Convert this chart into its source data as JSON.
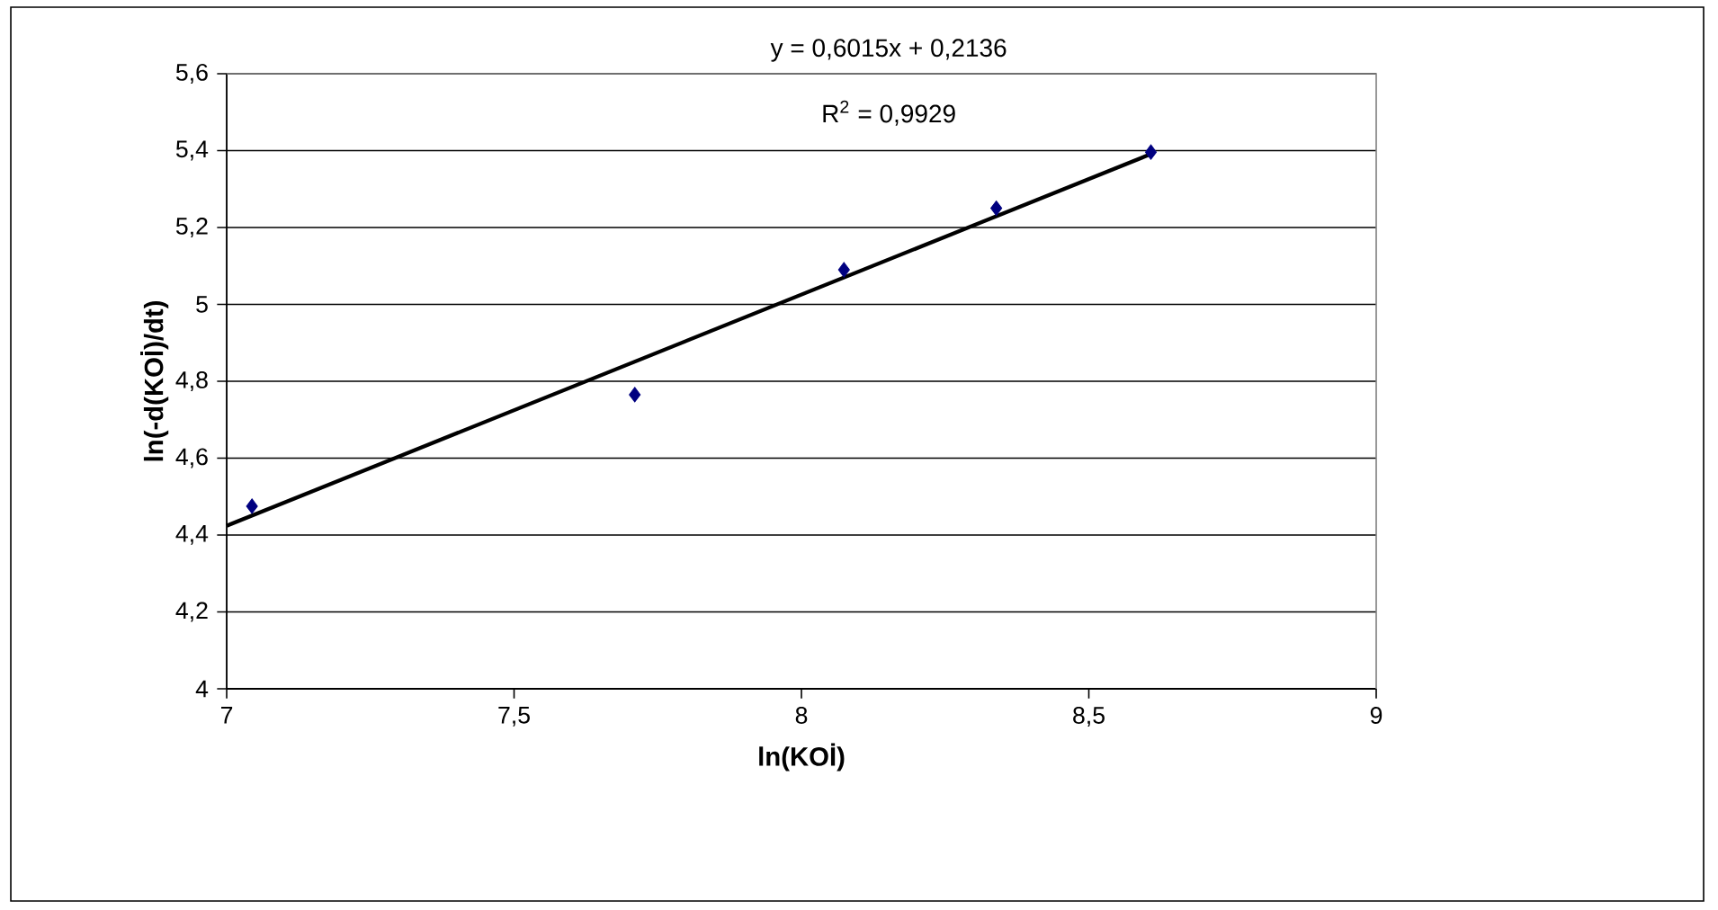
{
  "chart_data": {
    "type": "scatter",
    "xlabel": "ln(KOİ)",
    "ylabel": "ln(-d(KOİ)/dt)",
    "series": [
      {
        "color": "#000080",
        "marker": "diamond",
        "x": [
          7.044,
          7.71,
          8.074,
          8.339,
          8.608
        ],
        "values": [
          4.475,
          4.765,
          5.09,
          5.25,
          5.396
        ]
      },
      {
        "type": "line",
        "color": "#000000",
        "marker": "none",
        "line_style": "solid",
        "x": [
          7,
          8.608
        ],
        "values": [
          4.424,
          5.391
        ]
      }
    ],
    "xlim": [
      7,
      9
    ],
    "ylim": [
      4,
      5.6
    ],
    "xticks": [
      7,
      {
        "value": 7.5,
        "label": "7,5"
      },
      8,
      {
        "value": 8.5,
        "label": "8,5"
      },
      9
    ],
    "yticks": [
      4,
      {
        "value": 4.2,
        "label": "4,2"
      },
      {
        "value": 4.4,
        "label": "4,4"
      },
      {
        "value": 4.6,
        "label": "4,6"
      },
      {
        "value": 4.8,
        "label": "4,8"
      },
      5,
      {
        "value": 5.2,
        "label": "5,2"
      },
      {
        "value": 5.4,
        "label": "5,4"
      },
      {
        "value": 5.6,
        "label": "5,6"
      }
    ],
    "grid": "y",
    "annotations": [
      "y = 0,6015x + 0,2136",
      "R$^{2}$ = 0,9929"
    ]
  }
}
